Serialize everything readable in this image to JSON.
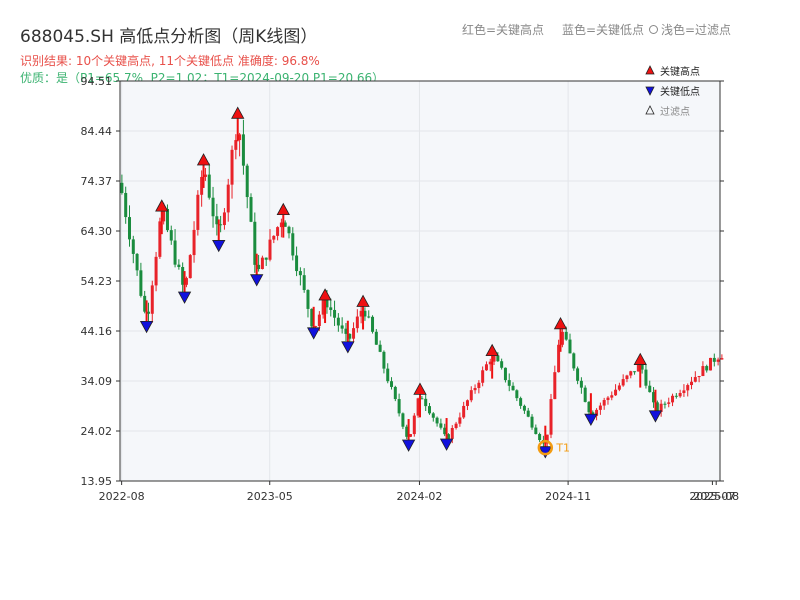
{
  "title": "688045.SH 高低点分析图（周K线图）",
  "top_legend": {
    "red": "红色=关键高点",
    "blue": "蓝色=关键低点",
    "light": "浅色=过滤点"
  },
  "result_line": "识别结果: 10个关键高点, 11个关键低点  准确度: 96.8%",
  "quality_line": "优质：是（P1=65.7%, P2=1.02；T1=2024-09-20 P1=20.66）",
  "colors": {
    "up": "#e8232a",
    "down": "#1a8c3e",
    "high_marker": "#ee1111",
    "low_marker": "#1111dd",
    "t1": "#f39c12"
  },
  "chart_data": {
    "type": "candlestick",
    "title": "688045.SH 高低点分析图（周K线图）",
    "x_tick_labels": [
      "2022-08",
      "2023-05",
      "2024-02",
      "2024-11",
      "2025-07",
      "2025-08"
    ],
    "y_tick_labels": [
      "13.95",
      "24.02",
      "34.09",
      "44.16",
      "54.23",
      "64.30",
      "74.37",
      "84.44",
      "94.51"
    ],
    "ylim": [
      13.95,
      94.51
    ],
    "grid": true,
    "legend_placement": "top-right",
    "legend": [
      "关键高点",
      "关键低点",
      "过滤点"
    ],
    "key_highs": [
      {
        "date": "2022-10-14",
        "price": 68.5
      },
      {
        "date": "2022-12-30",
        "price": 77.8
      },
      {
        "date": "2023-03-03",
        "price": 87.2
      },
      {
        "date": "2023-05-26",
        "price": 67.8
      },
      {
        "date": "2023-08-11",
        "price": 50.6
      },
      {
        "date": "2023-10-20",
        "price": 49.3
      },
      {
        "date": "2024-02-02",
        "price": 31.6
      },
      {
        "date": "2024-06-14",
        "price": 39.4
      },
      {
        "date": "2024-10-18",
        "price": 44.8
      },
      {
        "date": "2025-03-14",
        "price": 37.6
      }
    ],
    "key_lows": [
      {
        "date": "2022-09-16",
        "price": 45.9
      },
      {
        "date": "2022-11-25",
        "price": 51.8
      },
      {
        "date": "2023-01-27",
        "price": 62.2
      },
      {
        "date": "2023-04-07",
        "price": 55.3
      },
      {
        "date": "2023-07-21",
        "price": 44.6
      },
      {
        "date": "2023-09-22",
        "price": 41.8
      },
      {
        "date": "2024-01-12",
        "price": 22.0
      },
      {
        "date": "2024-03-22",
        "price": 22.2
      },
      {
        "date": "2024-09-20",
        "price": 20.66
      },
      {
        "date": "2024-12-13",
        "price": 27.2
      },
      {
        "date": "2025-04-11",
        "price": 27.9
      }
    ],
    "t1": {
      "label": "T1",
      "date": "2024-09-20",
      "price": 20.66
    }
  }
}
